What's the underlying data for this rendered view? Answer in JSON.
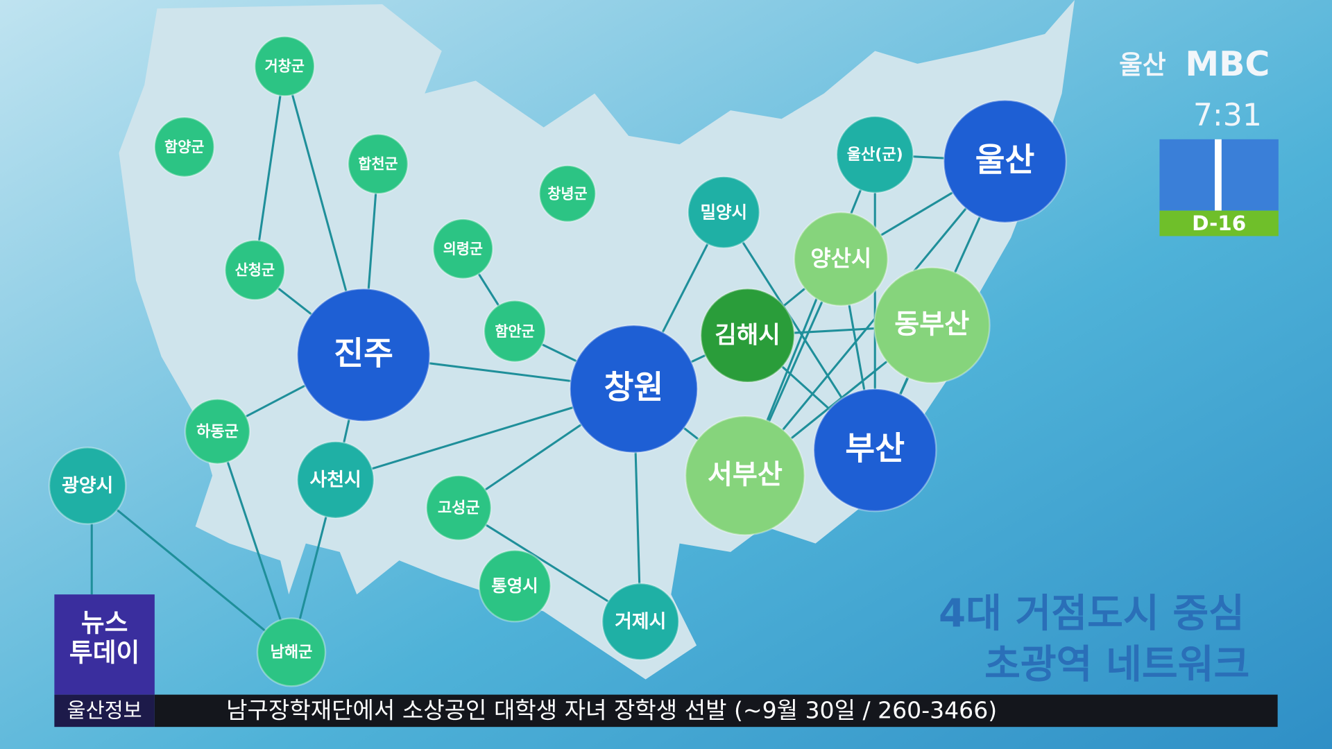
{
  "broadcaster": {
    "station": "울산",
    "brand": "MBC",
    "time": "7:31",
    "countdown": "D-16"
  },
  "program": {
    "name_line1": "뉴스",
    "name_line2": "투데이"
  },
  "ticker": {
    "label": "울산정보",
    "text": "남구장학재단에서 소상공인 대학생 자녀 장학생 선발 (~9월 30일 / 260-3466)"
  },
  "caption": {
    "line1": "4대 거점도시 중심",
    "line2": "초광역 네트워크"
  },
  "nodes": [
    {
      "label": "거창군"
    },
    {
      "label": "함양군"
    },
    {
      "label": "합천군"
    },
    {
      "label": "창녕군"
    },
    {
      "label": "산청군"
    },
    {
      "label": "의령군"
    },
    {
      "label": "밀양시"
    },
    {
      "label": "진주"
    },
    {
      "label": "함안군"
    },
    {
      "label": "창원"
    },
    {
      "label": "김해시"
    },
    {
      "label": "하동군"
    },
    {
      "label": "사천시"
    },
    {
      "label": "광양시"
    },
    {
      "label": "고성군"
    },
    {
      "label": "통영시"
    },
    {
      "label": "거제시"
    },
    {
      "label": "남해군"
    },
    {
      "label": "울산(군)"
    },
    {
      "label": "울산"
    },
    {
      "label": "양산시"
    },
    {
      "label": "동부산"
    },
    {
      "label": "부산"
    },
    {
      "label": "서부산"
    }
  ]
}
